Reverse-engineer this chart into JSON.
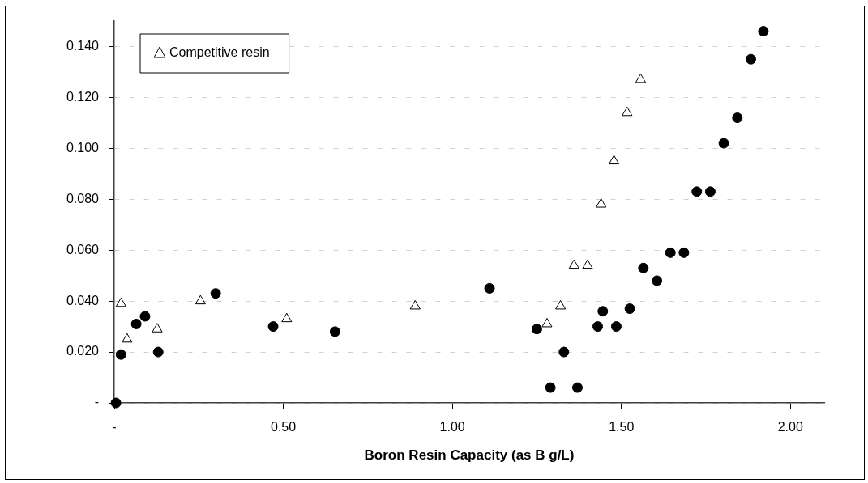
{
  "chart_data": {
    "type": "scatter",
    "xlabel": "Boron Resin Capacity (as B g/L)",
    "xlim": [
      0,
      2.1
    ],
    "xticks": [
      {
        "value": 0,
        "label": "-"
      },
      {
        "value": 0.5,
        "label": "0.50"
      },
      {
        "value": 1,
        "label": "1.00"
      },
      {
        "value": 1.5,
        "label": "1.50"
      },
      {
        "value": 2,
        "label": "2.00"
      }
    ],
    "ylim": [
      0,
      0.15
    ],
    "yticks": [
      {
        "value": 0,
        "label": "-"
      },
      {
        "value": 0.02,
        "label": "0.020"
      },
      {
        "value": 0.04,
        "label": "0.040"
      },
      {
        "value": 0.06,
        "label": "0.060"
      },
      {
        "value": 0.08,
        "label": "0.080"
      },
      {
        "value": 0.1,
        "label": "0.100"
      },
      {
        "value": 0.12,
        "label": "0.120"
      },
      {
        "value": 0.14,
        "label": "0.140"
      }
    ],
    "grid": "y",
    "legend": "top left",
    "series": [
      {
        "name": "Competitive resin",
        "color": "#000000",
        "marker": "triangle",
        "x": [
          0.02,
          0.038,
          0.127,
          0.255,
          0.51,
          0.89,
          1.28,
          1.32,
          1.36,
          1.4,
          1.44,
          1.478,
          1.517,
          1.557
        ],
        "values": [
          0.039,
          0.025,
          0.029,
          0.04,
          0.033,
          0.038,
          0.031,
          0.038,
          0.054,
          0.054,
          0.078,
          0.095,
          0.114,
          0.127
        ]
      },
      {
        "color": "#000000",
        "marker": "circle",
        "x": [
          0.005,
          0.02,
          0.065,
          0.091,
          0.13,
          0.3,
          0.47,
          0.653,
          1.11,
          1.25,
          1.29,
          1.33,
          1.37,
          1.43,
          1.445,
          1.485,
          1.525,
          1.565,
          1.605,
          1.645,
          1.685,
          1.723,
          1.763,
          1.803,
          1.843,
          1.883,
          1.92
        ],
        "values": [
          0,
          0.019,
          0.031,
          0.034,
          0.02,
          0.043,
          0.03,
          0.028,
          0.045,
          0.029,
          0.006,
          0.02,
          0.006,
          0.03,
          0.036,
          0.03,
          0.037,
          0.053,
          0.048,
          0.059,
          0.059,
          0.083,
          0.083,
          0.102,
          0.112,
          0.135,
          0.146
        ]
      }
    ]
  }
}
